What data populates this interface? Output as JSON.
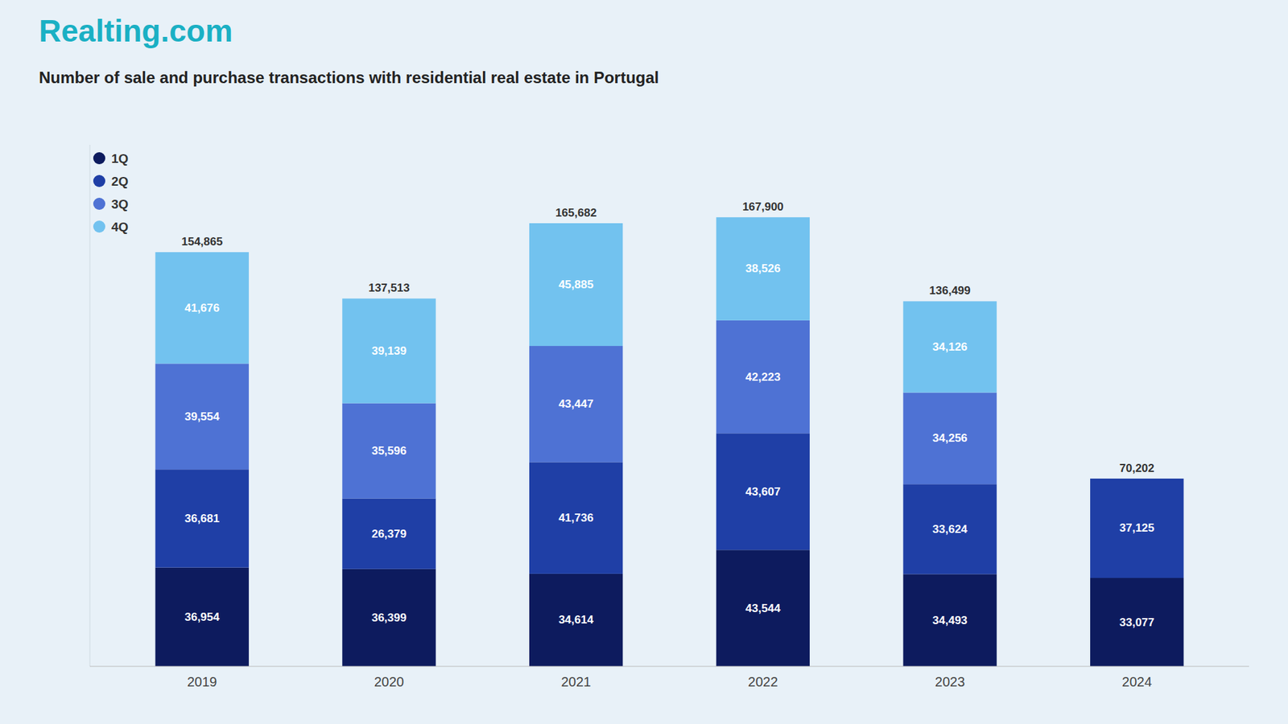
{
  "chart_data": {
    "type": "bar",
    "title": "Number of sale and purchase transactions with residential real estate in Portugal",
    "annotations": [
      "Realting.com"
    ],
    "categories": [
      "2019",
      "2020",
      "2021",
      "2022",
      "2023",
      "2024"
    ],
    "series": [
      {
        "name": "1Q",
        "color": "#0d1b5e",
        "values": [
          36954,
          36399,
          34614,
          43544,
          34493,
          33077
        ],
        "value_labels": [
          "36,954",
          "36,399",
          "34,614",
          "43,544",
          "34,493",
          "33,077"
        ]
      },
      {
        "name": "2Q",
        "color": "#1f3fa6",
        "values": [
          36681,
          26379,
          41736,
          43607,
          33624,
          37125
        ],
        "value_labels": [
          "36,681",
          "26,379",
          "41,736",
          "43,607",
          "33,624",
          "37,125"
        ]
      },
      {
        "name": "3Q",
        "color": "#4e72d4",
        "values": [
          39554,
          35596,
          43447,
          42223,
          34256,
          0
        ],
        "value_labels": [
          "39,554",
          "35,596",
          "43,447",
          "42,223",
          "34,256",
          null
        ]
      },
      {
        "name": "4Q",
        "color": "#72c2ef",
        "values": [
          41676,
          39139,
          45885,
          38526,
          34126,
          0
        ],
        "value_labels": [
          "41,676",
          "39,139",
          "45,885",
          "38,526",
          "34,126",
          null
        ]
      }
    ],
    "totals": [
      154865,
      137513,
      165682,
      167900,
      136499,
      70202
    ],
    "total_labels": [
      "154,865",
      "137,513",
      "165,682",
      "167,900",
      "136,499",
      "70,202"
    ],
    "ylim": [
      0,
      195000
    ],
    "stacked": true,
    "data_labels": true,
    "grid": false,
    "legend": "upper left",
    "tick_labels": "x"
  }
}
